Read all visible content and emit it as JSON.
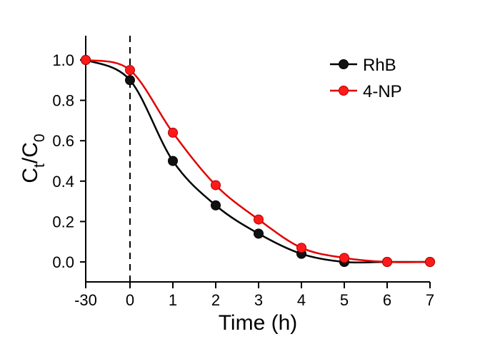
{
  "chart_data": {
    "type": "line",
    "xlabel": "Time (h)",
    "ylabel": {
      "base1": "C",
      "sub1": "t",
      "slash": "/",
      "base2": "C",
      "sub2": "0"
    },
    "x_ticks": [
      -30,
      0,
      1,
      2,
      3,
      4,
      5,
      6,
      7
    ],
    "y_ticks": [
      0.0,
      0.2,
      0.4,
      0.6,
      0.8,
      1.0
    ],
    "y_tick_labels": [
      "0.0",
      "0.2",
      "0.4",
      "0.6",
      "0.8",
      "1.0"
    ],
    "ylim": [
      -0.1,
      1.1
    ],
    "reference_line": {
      "x": 0,
      "style": "dashed"
    },
    "series": [
      {
        "name": "RhB",
        "color": "#000000",
        "marker_fill": "#111111",
        "x": [
          -30,
          0,
          1,
          2,
          3,
          4,
          5,
          6,
          7
        ],
        "y": [
          1.0,
          0.9,
          0.5,
          0.28,
          0.14,
          0.04,
          0.0,
          0.0,
          0.0
        ]
      },
      {
        "name": "4-NP",
        "color": "#e00000",
        "marker_fill": "#ff1a1a",
        "x": [
          -30,
          0,
          1,
          2,
          3,
          4,
          5,
          6,
          7
        ],
        "y": [
          1.0,
          0.95,
          0.64,
          0.38,
          0.21,
          0.07,
          0.02,
          0.0,
          0.0
        ]
      }
    ],
    "legend": {
      "placement": "top-right"
    },
    "grid": false
  }
}
